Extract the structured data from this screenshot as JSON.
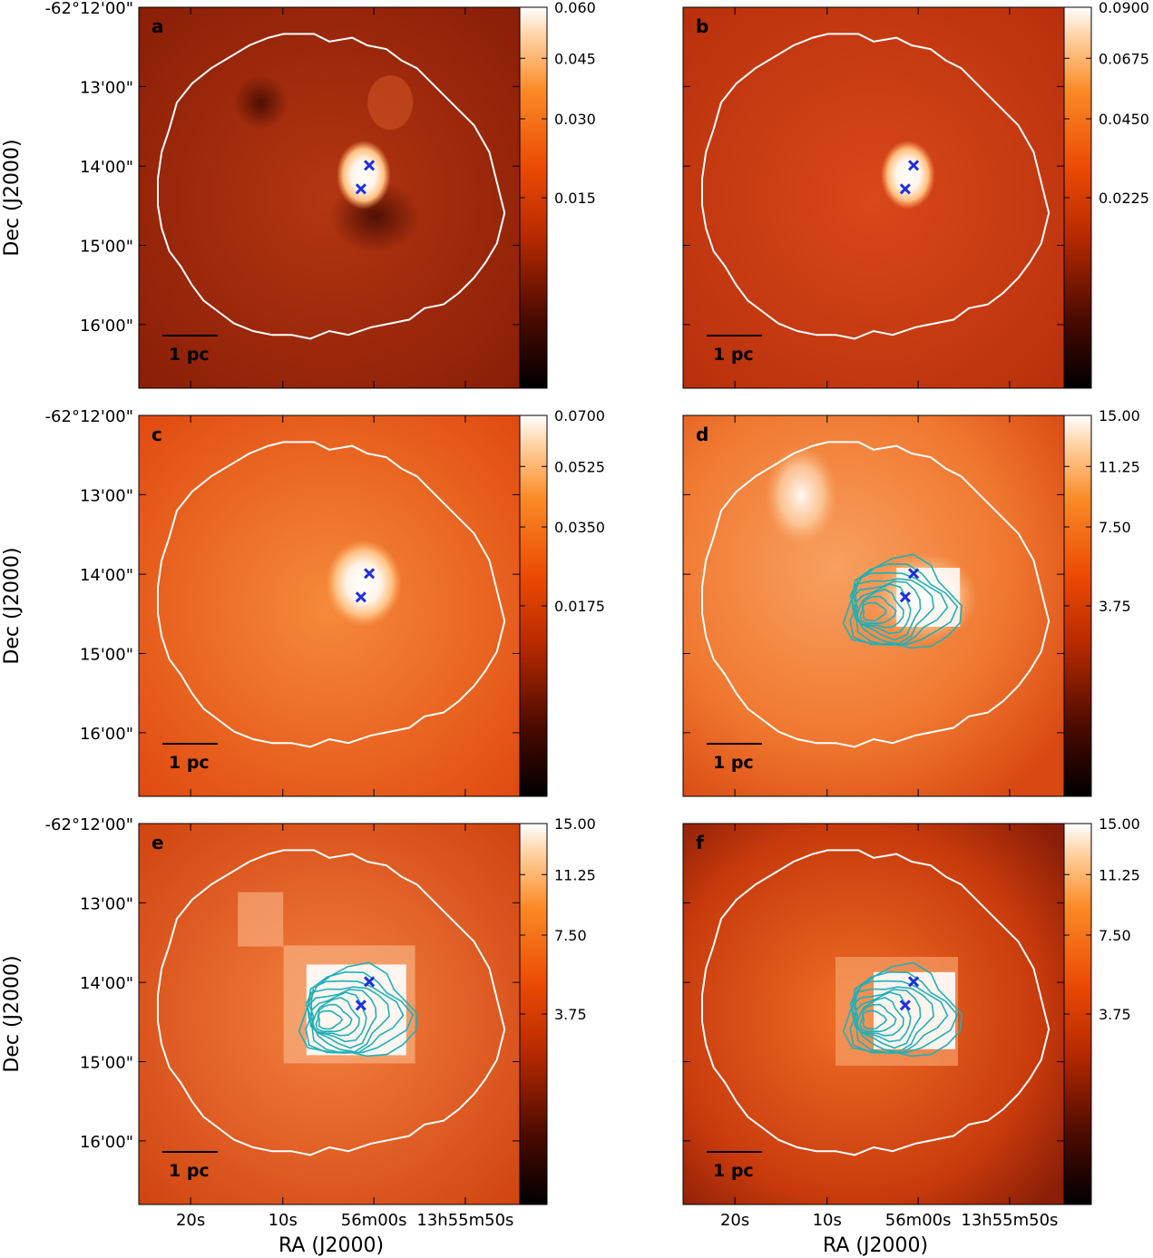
{
  "figure": {
    "x_axis_title": "RA (J2000)",
    "y_axis_title": "Dec (J2000)",
    "x_tick_labels": [
      "20s",
      "10s",
      "56m00s",
      "13h55m50s"
    ],
    "y_tick_labels": [
      "-62°12'00\"",
      "13'00\"",
      "14'00\"",
      "15'00\"",
      "16'00\""
    ],
    "scale_bar_label": "1 pc",
    "colors": {
      "boundary": "#ffffff",
      "markers": "#1f2fe0",
      "contours": "#1fb0b8"
    }
  },
  "panels": [
    {
      "letter": "a",
      "cb_labels": [
        "0.060",
        "0.045",
        "0.030",
        "0.015"
      ],
      "cb_values": [
        0.06,
        0.045,
        0.03,
        0.015
      ],
      "cb_max": 0.06,
      "contours": false
    },
    {
      "letter": "b",
      "cb_labels": [
        "0.0900",
        "0.0675",
        "0.0450",
        "0.0225"
      ],
      "cb_values": [
        0.09,
        0.0675,
        0.045,
        0.0225
      ],
      "cb_max": 0.09,
      "contours": false
    },
    {
      "letter": "c",
      "cb_labels": [
        "0.0700",
        "0.0525",
        "0.0350",
        "0.0175"
      ],
      "cb_values": [
        0.07,
        0.0525,
        0.035,
        0.0175
      ],
      "cb_max": 0.07,
      "contours": false
    },
    {
      "letter": "d",
      "cb_labels": [
        "15.00",
        "11.25",
        "7.50",
        "3.75"
      ],
      "cb_values": [
        15,
        11.25,
        7.5,
        3.75
      ],
      "cb_max": 15,
      "contours": true
    },
    {
      "letter": "e",
      "cb_labels": [
        "15.00",
        "11.25",
        "7.50",
        "3.75"
      ],
      "cb_values": [
        15,
        11.25,
        7.5,
        3.75
      ],
      "cb_max": 15,
      "contours": true
    },
    {
      "letter": "f",
      "cb_labels": [
        "15.00",
        "11.25",
        "7.50",
        "3.75"
      ],
      "cb_values": [
        15,
        11.25,
        7.5,
        3.75
      ],
      "cb_max": 15,
      "contours": true
    }
  ]
}
